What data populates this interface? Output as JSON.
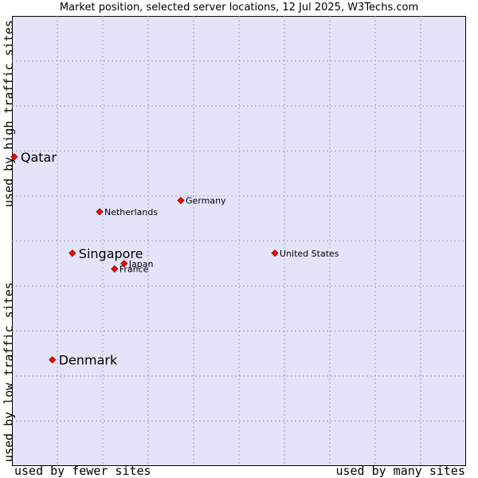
{
  "chart_data": {
    "type": "scatter",
    "title": "Market position, selected server locations, 12 Jul 2025, W3Techs.com",
    "xlabel_left": "used by fewer sites",
    "xlabel_right": "used by many sites",
    "ylabel_top": "used by high traffic sites",
    "ylabel_bottom": "used by low traffic sites",
    "xlim": [
      0,
      10
    ],
    "ylim": [
      0,
      10
    ],
    "grid": true,
    "marker_color": "#ff0000",
    "background_color": "#e4e4f8",
    "grid_color": "#a0a0c0",
    "points": [
      {
        "name": "Qatar",
        "x": 0.05,
        "y": 6.87,
        "emphasis": true
      },
      {
        "name": "Germany",
        "x": 3.72,
        "y": 5.9,
        "emphasis": false
      },
      {
        "name": "Netherlands",
        "x": 1.93,
        "y": 5.65,
        "emphasis": false
      },
      {
        "name": "Singapore",
        "x": 1.33,
        "y": 4.73,
        "emphasis": true
      },
      {
        "name": "United States",
        "x": 5.79,
        "y": 4.73,
        "emphasis": false
      },
      {
        "name": "Japan",
        "x": 2.47,
        "y": 4.5,
        "emphasis": false
      },
      {
        "name": "France",
        "x": 2.26,
        "y": 4.38,
        "emphasis": false
      },
      {
        "name": "Denmark",
        "x": 0.89,
        "y": 2.36,
        "emphasis": true
      }
    ]
  }
}
